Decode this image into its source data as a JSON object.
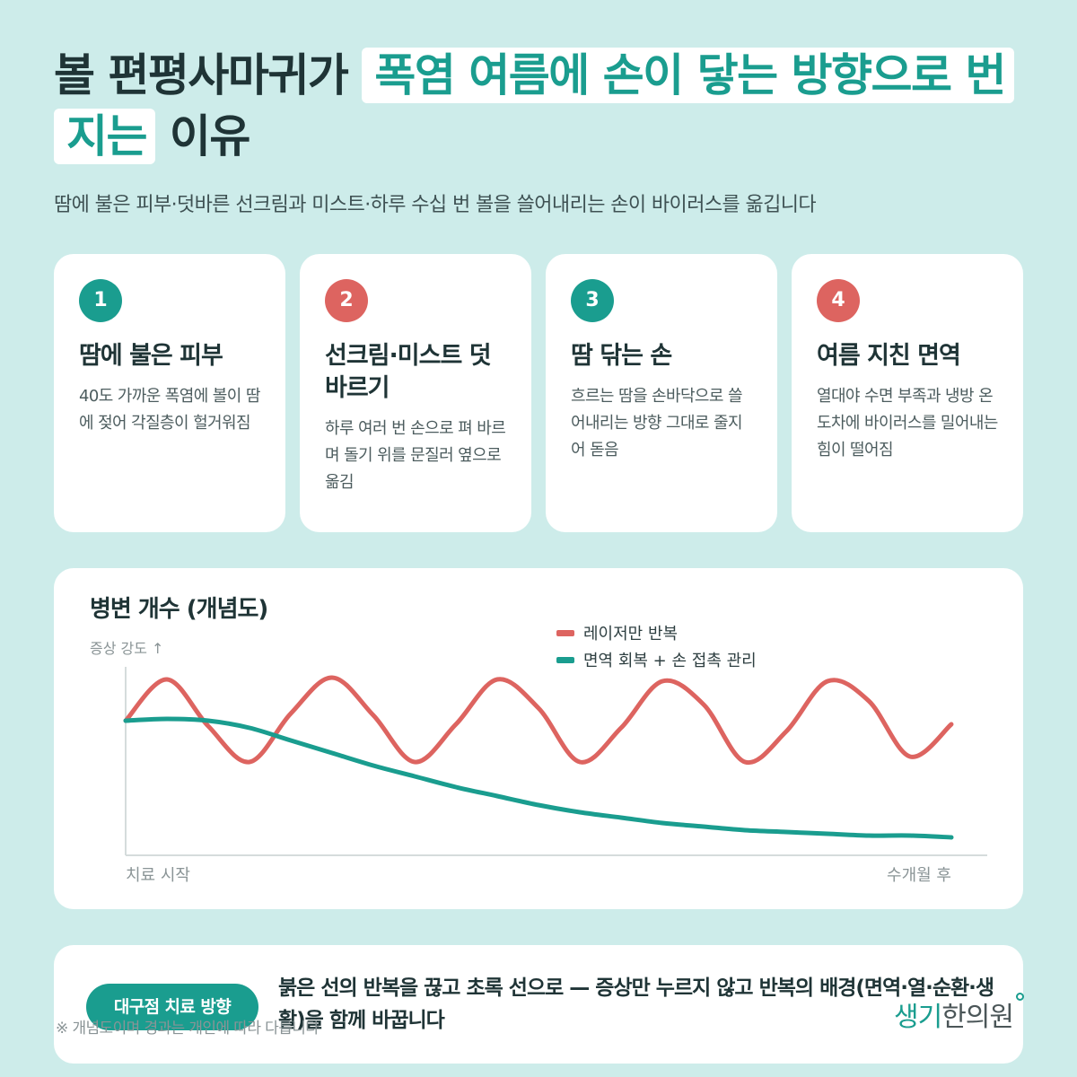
{
  "title": {
    "lead": "볼 편평사마귀가",
    "highlight": "폭염 여름에 손이 닿는 방향으로 번지는",
    "tail": "이유"
  },
  "subtitle": "땀에 불은 피부·덧바른 선크림과 미스트·하루 수십 번 볼을 쓸어내리는 손이 바이러스를 옮깁니다",
  "cards": [
    {
      "number": "1",
      "badge_color": "#1a9d8f",
      "heading": "땀에 불은 피부",
      "body": "40도 가까운 폭염에 볼이 땀에 젖어 각질층이 헐거워짐"
    },
    {
      "number": "2",
      "badge_color": "#dd6460",
      "heading": "선크림·미스트 덧바르기",
      "body": "하루 여러 번 손으로 펴 바르며 돌기 위를 문질러 옆으로 옮김"
    },
    {
      "number": "3",
      "badge_color": "#1a9d8f",
      "heading": "땀 닦는 손",
      "body": "흐르는 땀을 손바닥으로 쓸어내리는 방향 그대로 줄지어 돋음"
    },
    {
      "number": "4",
      "badge_color": "#dd6460",
      "heading": "여름 지친 면역",
      "body": "열대야 수면 부족과 냉방 온도차에 바이러스를 밀어내는 힘이 떨어짐"
    }
  ],
  "chart_data": {
    "type": "line",
    "title": "병변 개수 (개념도)",
    "ylabel": "증상 강도 ↑",
    "xlabel_start": "치료 시작",
    "xlabel_end": "수개월 후",
    "legend_position": "top-right",
    "x": [
      0,
      0.05,
      0.1,
      0.15,
      0.2,
      0.25,
      0.3,
      0.35,
      0.4,
      0.45,
      0.5,
      0.55,
      0.6,
      0.65,
      0.7,
      0.75,
      0.8,
      0.85,
      0.9,
      0.95,
      1.0
    ],
    "series": [
      {
        "name": "레이저만 반복",
        "color": "#dd6460",
        "values": [
          0.75,
          0.98,
          0.72,
          0.52,
          0.79,
          0.99,
          0.78,
          0.52,
          0.73,
          0.98,
          0.82,
          0.52,
          0.71,
          0.97,
          0.84,
          0.52,
          0.69,
          0.97,
          0.86,
          0.55,
          0.73
        ]
      },
      {
        "name": "면역 회복 + 손 접촉 관리",
        "color": "#1a9d8f",
        "values": [
          0.75,
          0.76,
          0.75,
          0.71,
          0.64,
          0.57,
          0.5,
          0.44,
          0.38,
          0.33,
          0.28,
          0.24,
          0.21,
          0.18,
          0.16,
          0.14,
          0.13,
          0.12,
          0.11,
          0.11,
          0.1
        ]
      }
    ],
    "ylim": [
      0,
      1.1
    ],
    "grid": false
  },
  "footer": {
    "pill_label": "대구점 치료 방향",
    "message": "붉은 선의 반복을 끊고 초록 선으로 — 증상만 누르지 않고 반복의 배경(면역·열·순환·생활)을 함께 바꿉니다",
    "note": "※ 개념도이며 경과는 개인에 따라 다릅니다",
    "logo_main": "생기",
    "logo_sub": "한의원"
  }
}
